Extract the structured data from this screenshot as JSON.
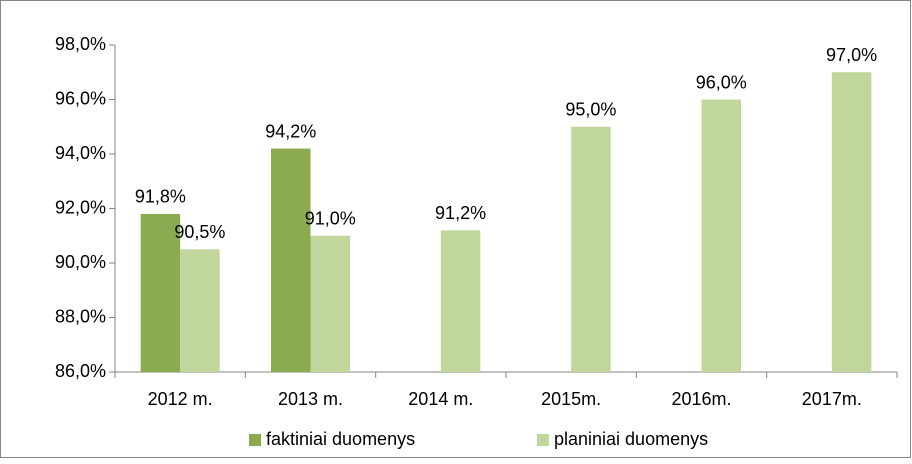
{
  "chart_data": {
    "type": "bar",
    "categories": [
      "2012 m.",
      "2013 m.",
      "2014 m.",
      "2015m.",
      "2016m.",
      "2017m."
    ],
    "series": [
      {
        "name": "faktiniai duomenys",
        "color": "#8aab50",
        "values": [
          91.8,
          94.2,
          null,
          null,
          null,
          null
        ],
        "value_labels": [
          "91,8%",
          "94,2%",
          null,
          null,
          null,
          null
        ]
      },
      {
        "name": "planiniai duomenys",
        "color": "#c0d69b",
        "values": [
          90.5,
          91.0,
          91.2,
          95.0,
          96.0,
          97.0
        ],
        "value_labels": [
          "90,5%",
          "91,0%",
          "91,2%",
          "95,0%",
          "96,0%",
          "97,0%"
        ]
      }
    ],
    "ylim": [
      86,
      98
    ],
    "yticks": [
      {
        "value": 86,
        "label": "86,0%"
      },
      {
        "value": 88,
        "label": "88,0%"
      },
      {
        "value": 90,
        "label": "90,0%"
      },
      {
        "value": 92,
        "label": "92,0%"
      },
      {
        "value": 94,
        "label": "94,0%"
      },
      {
        "value": 96,
        "label": "96,0%"
      },
      {
        "value": 98,
        "label": "98,0%"
      }
    ],
    "grid": false,
    "legend": "bottom"
  }
}
